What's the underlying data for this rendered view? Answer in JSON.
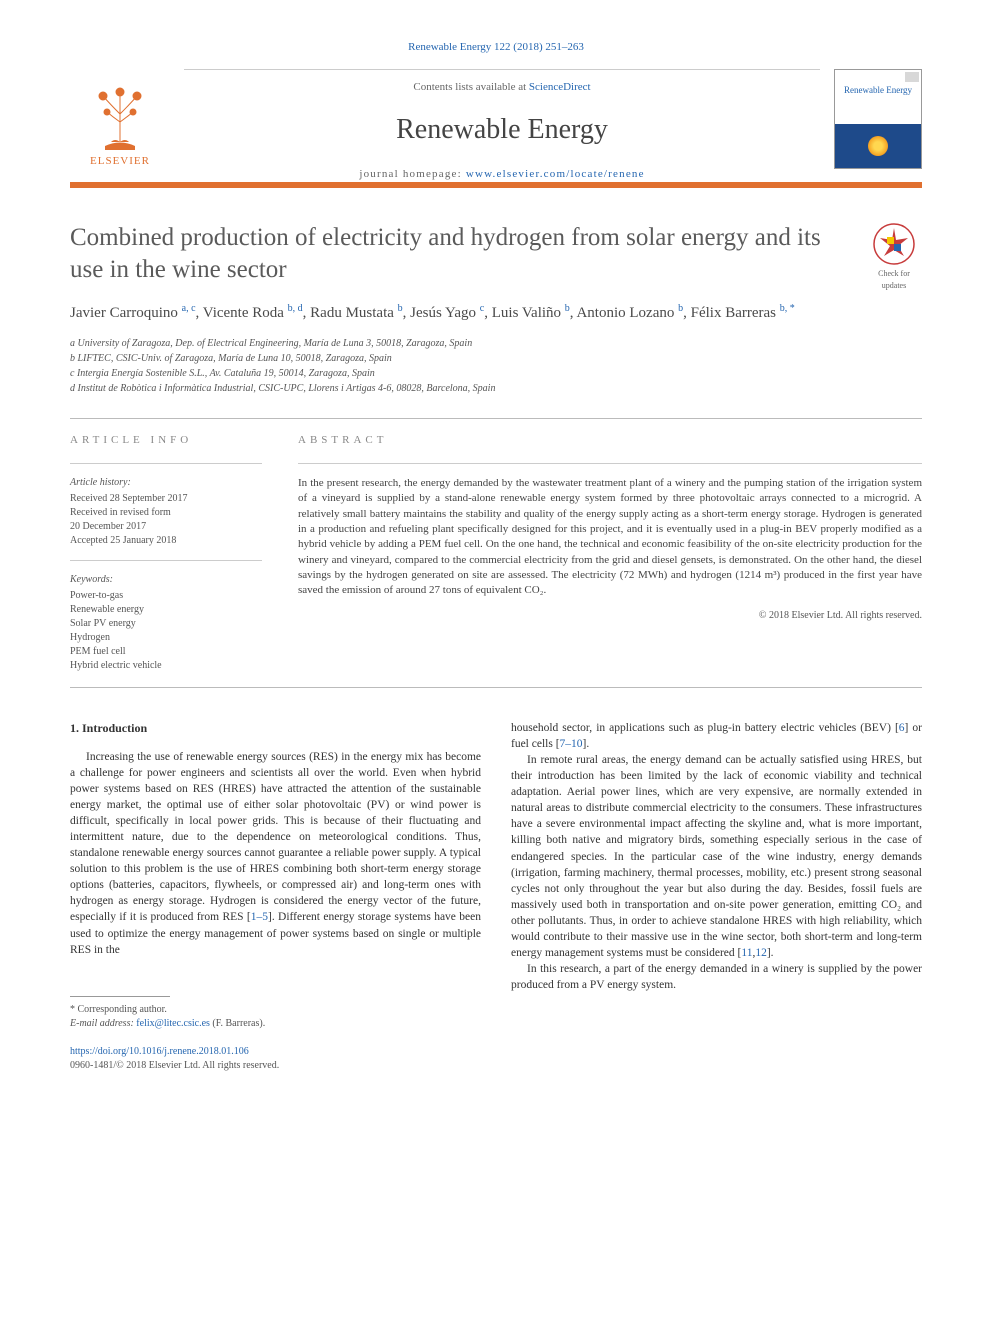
{
  "citation": "Renewable Energy 122 (2018) 251–263",
  "masthead": {
    "contents_prefix": "Contents lists available at ",
    "contents_link": "ScienceDirect",
    "journal_name": "Renewable Energy",
    "homepage_prefix": "journal homepage: ",
    "homepage_url": "www.elsevier.com/locate/renene",
    "publisher_name": "ELSEVIER",
    "cover_title": "Renewable Energy"
  },
  "colors": {
    "accent_orange": "#e07030",
    "link_blue": "#2566b0",
    "text_gray": "#5a5a5a",
    "rule_gray": "#bbbbbb"
  },
  "check_updates": {
    "line1": "Check for",
    "line2": "updates"
  },
  "article": {
    "title": "Combined production of electricity and hydrogen from solar energy and its use in the wine sector",
    "authors_html": "Javier Carroquino <sup>a, c</sup>, Vicente Roda <sup>b, d</sup>, Radu Mustata <sup>b</sup>, Jesús Yago <sup>c</sup>, Luis Valiño <sup>b</sup>, Antonio Lozano <sup>b</sup>, Félix Barreras <sup>b, *</sup>",
    "affiliations": [
      "a University of Zaragoza, Dep. of Electrical Engineering, María de Luna 3, 50018, Zaragoza, Spain",
      "b LIFTEC, CSIC-Univ. of Zaragoza, María de Luna 10, 50018, Zaragoza, Spain",
      "c Intergia Energía Sostenible S.L., Av. Cataluña 19, 50014, Zaragoza, Spain",
      "d Institut de Robòtica i Informàtica Industrial, CSIC-UPC, Llorens i Artigas 4-6, 08028, Barcelona, Spain"
    ]
  },
  "article_info": {
    "heading": "ARTICLE INFO",
    "history_label": "Article history:",
    "history": [
      "Received 28 September 2017",
      "Received in revised form",
      "20 December 2017",
      "Accepted 25 January 2018"
    ],
    "keywords_label": "Keywords:",
    "keywords": [
      "Power-to-gas",
      "Renewable energy",
      "Solar PV energy",
      "Hydrogen",
      "PEM fuel cell",
      "Hybrid electric vehicle"
    ]
  },
  "abstract": {
    "heading": "ABSTRACT",
    "text": "In the present research, the energy demanded by the wastewater treatment plant of a winery and the pumping station of the irrigation system of a vineyard is supplied by a stand-alone renewable energy system formed by three photovoltaic arrays connected to a microgrid. A relatively small battery maintains the stability and quality of the energy supply acting as a short-term energy storage. Hydrogen is generated in a production and refueling plant specifically designed for this project, and it is eventually used in a plug-in BEV properly modified as a hybrid vehicle by adding a PEM fuel cell. On the one hand, the technical and economic feasibility of the on-site electricity production for the winery and vineyard, compared to the commercial electricity from the grid and diesel gensets, is demonstrated. On the other hand, the diesel savings by the hydrogen generated on site are assessed. The electricity (72 MWh) and hydrogen (1214 m³) produced in the first year have saved the emission of around 27 tons of equivalent CO₂.",
    "copyright": "© 2018 Elsevier Ltd. All rights reserved."
  },
  "body": {
    "section_heading": "1. Introduction",
    "col1_p1_html": "Increasing the use of renewable energy sources (RES) in the energy mix has become a challenge for power engineers and scientists all over the world. Even when hybrid power systems based on RES (HRES) have attracted the attention of the sustainable energy market, the optimal use of either solar photovoltaic (PV) or wind power is difficult, specifically in local power grids. This is because of their fluctuating and intermittent nature, due to the dependence on meteorological conditions. Thus, standalone renewable energy sources cannot guarantee a reliable power supply. A typical solution to this problem is the use of HRES combining both short-term energy storage options (batteries, capacitors, flywheels, or compressed air) and long-term ones with hydrogen as energy storage. Hydrogen is considered the energy vector of the future, especially if it is produced from RES [<a>1–5</a>]. Different energy storage systems have been used to optimize the energy management of power systems based on single or multiple RES in the",
    "col2_p1_html": "household sector, in applications such as plug-in battery electric vehicles (BEV) [<a>6</a>] or fuel cells [<a>7–10</a>].",
    "col2_p2_html": "In remote rural areas, the energy demand can be actually satisfied using HRES, but their introduction has been limited by the lack of economic viability and technical adaptation. Aerial power lines, which are very expensive, are normally extended in natural areas to distribute commercial electricity to the consumers. These infrastructures have a severe environmental impact affecting the skyline and, what is more important, killing both native and migratory birds, something especially serious in the case of endangered species. In the particular case of the wine industry, energy demands (irrigation, farming machinery, thermal processes, mobility, etc.) present strong seasonal cycles not only throughout the year but also during the day. Besides, fossil fuels are massively used both in transportation and on-site power generation, emitting CO₂ and other pollutants. Thus, in order to achieve standalone HRES with high reliability, which would contribute to their massive use in the wine sector, both short-term and long-term energy management systems must be considered [<a>11</a>,<a>12</a>].",
    "col2_p3_html": "In this research, a part of the energy demanded in a winery is supplied by the power produced from a PV energy system."
  },
  "footnotes": {
    "corresponding": "* Corresponding author.",
    "email_label": "E-mail address:",
    "email": "felix@litec.csic.es",
    "email_author": "(F. Barreras)."
  },
  "bottom": {
    "doi": "https://doi.org/10.1016/j.renene.2018.01.106",
    "issn_line": "0960-1481/© 2018 Elsevier Ltd. All rights reserved."
  }
}
